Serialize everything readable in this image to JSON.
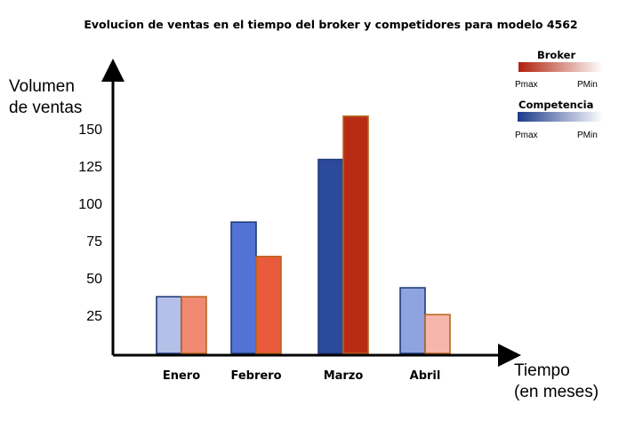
{
  "chart_data": {
    "type": "bar",
    "title": "Evolucion de ventas en el tiempo del broker y competidores para modelo 4562",
    "ylabel_lines": [
      "Volumen",
      "de ventas"
    ],
    "xlabel_lines": [
      "Tiempo",
      "(en meses)"
    ],
    "categories": [
      "Enero",
      "Febrero",
      "Marzo",
      "Abril"
    ],
    "yticks": [
      25,
      50,
      75,
      100,
      125,
      150
    ],
    "ylim": [
      0,
      175
    ],
    "grid": false,
    "legend_position": "top-right",
    "series": [
      {
        "name": "Competencia",
        "values": [
          38,
          88,
          130,
          44
        ],
        "colors": [
          "#b4c0e8",
          "#5273d4",
          "#2c4a9c",
          "#8ea3e0"
        ],
        "border": "#1f3b7a"
      },
      {
        "name": "Broker",
        "values": [
          38,
          65,
          159,
          26
        ],
        "colors": [
          "#f08a72",
          "#ea5a3c",
          "#b82c14",
          "#f5b7aa"
        ],
        "border": "#b8651f"
      }
    ],
    "legend": [
      {
        "name": "Broker",
        "low_label": "Pmax",
        "high_label": "PMin",
        "gradient": [
          "#b0200c",
          "#ffffff"
        ]
      },
      {
        "name": "Competencia",
        "low_label": "Pmax",
        "high_label": "PMin",
        "gradient": [
          "#1c3a8a",
          "#ffffff"
        ]
      }
    ]
  }
}
